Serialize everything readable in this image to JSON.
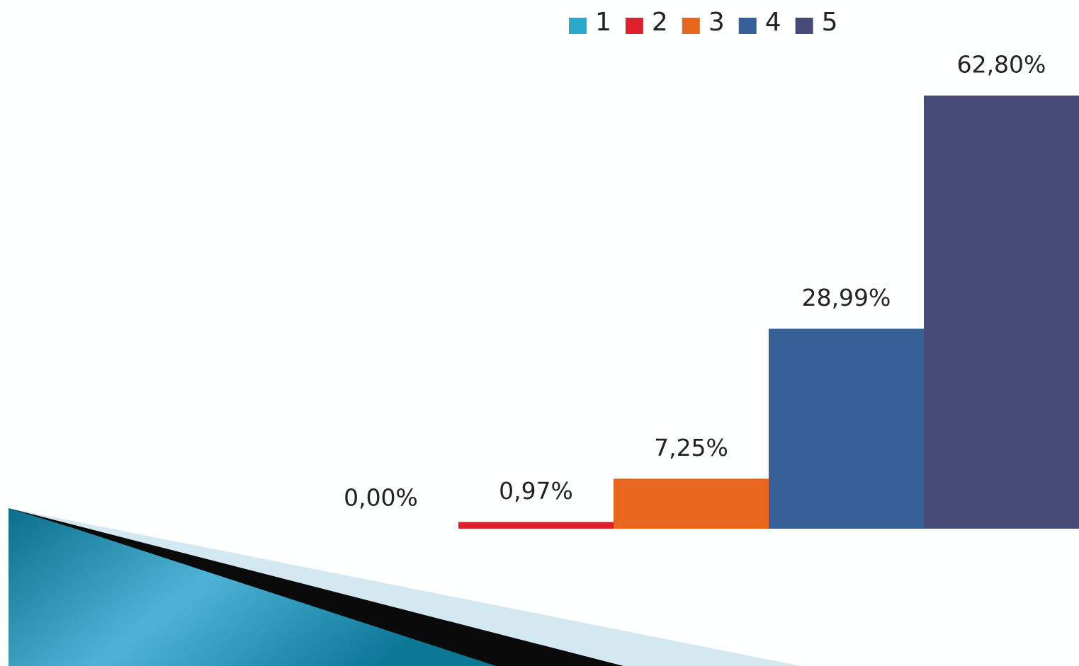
{
  "chart_data": {
    "type": "bar",
    "categories": [
      null
    ],
    "series": [
      {
        "name": "1",
        "color": "#2aa9cc",
        "values": [
          0
        ],
        "value_labels": [
          "0,00%"
        ]
      },
      {
        "name": "2",
        "color": "#e0202c",
        "values": [
          0.97
        ],
        "value_labels": [
          "0,97%"
        ]
      },
      {
        "name": "3",
        "color": "#e8661e",
        "values": [
          7.25
        ],
        "value_labels": [
          "7,25%"
        ]
      },
      {
        "name": "4",
        "color": "#386098",
        "values": [
          28.99
        ],
        "value_labels": [
          "28,99%"
        ]
      },
      {
        "name": "5",
        "color": "#454a76",
        "values": [
          62.8
        ],
        "value_labels": [
          "62,80%"
        ]
      }
    ],
    "legend": "top"
  }
}
